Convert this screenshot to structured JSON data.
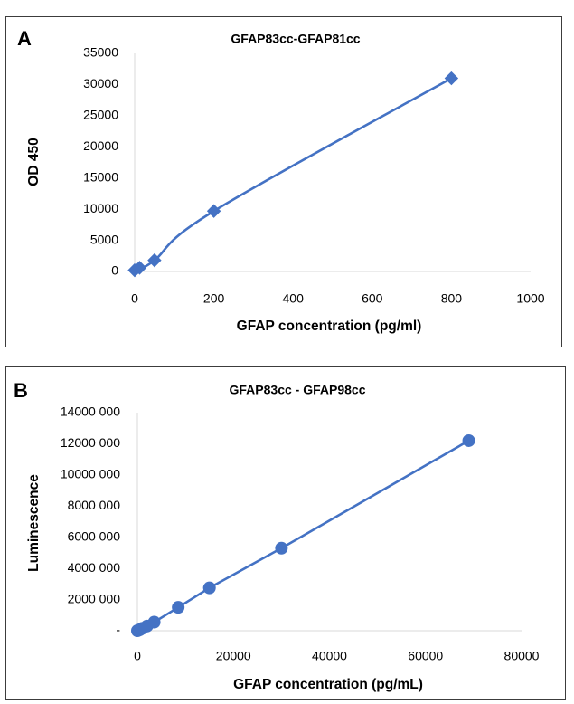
{
  "chart_data": [
    {
      "panel_letter": "A",
      "type": "scatter",
      "title": "GFAP83cc-GFAP81cc",
      "xlabel": "GFAP concentration (pg/ml)",
      "ylabel": "OD 450",
      "xlim": [
        0,
        1000
      ],
      "ylim": [
        0,
        35000
      ],
      "x_ticks": [
        0,
        200,
        400,
        600,
        800,
        1000
      ],
      "x_tick_labels": [
        "0",
        "200",
        "400",
        "600",
        "800",
        "1000"
      ],
      "y_ticks": [
        0,
        5000,
        10000,
        15000,
        20000,
        25000,
        30000,
        35000
      ],
      "y_tick_labels": [
        "0",
        "5000",
        "10000",
        "15000",
        "20000",
        "25000",
        "30000",
        "35000"
      ],
      "marker": "diamond",
      "line": "smooth",
      "grid": false,
      "color": "#4472c4",
      "series": [
        {
          "x": [
            0,
            12.5,
            50,
            200,
            800
          ],
          "y": [
            200,
            600,
            1800,
            9700,
            31000
          ]
        }
      ]
    },
    {
      "panel_letter": "B",
      "type": "scatter",
      "title": "GFAP83cc - GFAP98cc",
      "xlabel": "GFAP concentration (pg/mL)",
      "ylabel": "Luminescence",
      "xlim": [
        0,
        80000
      ],
      "ylim": [
        0,
        14000000
      ],
      "x_ticks": [
        0,
        20000,
        40000,
        60000,
        80000
      ],
      "x_tick_labels": [
        "0",
        "20000",
        "40000",
        "60000",
        "80000"
      ],
      "y_ticks": [
        0,
        2000000,
        4000000,
        6000000,
        8000000,
        10000000,
        12000000,
        14000000
      ],
      "y_tick_labels": [
        "-",
        "2000 000",
        "4000 000",
        "6000 000",
        "8000 000",
        "10000 000",
        "12000 000",
        "14000 000"
      ],
      "marker": "circle",
      "line": "straight",
      "grid": false,
      "color": "#4472c4",
      "series": [
        {
          "x": [
            0,
            250,
            500,
            1000,
            2000,
            3500,
            8500,
            15000,
            30000,
            69000
          ],
          "y": [
            0,
            30000,
            60000,
            150000,
            300000,
            550000,
            1500000,
            2750000,
            5300000,
            12200000
          ]
        }
      ]
    }
  ]
}
